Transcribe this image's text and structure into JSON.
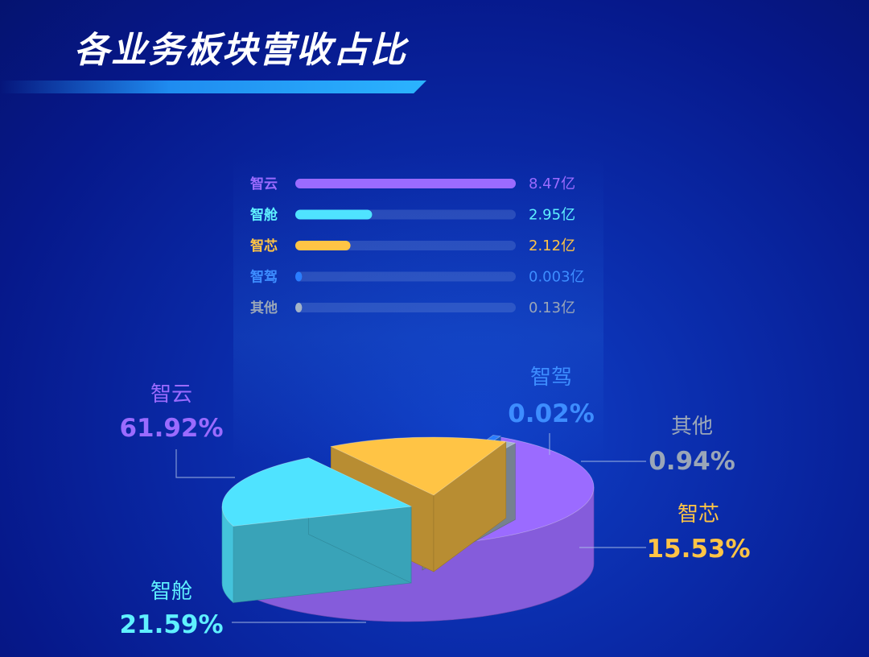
{
  "title": "各业务板块营收占比",
  "chart_data": {
    "type": "pie",
    "title": "各业务板块营收占比",
    "categories": [
      "智云",
      "智舱",
      "智芯",
      "智驾",
      "其他"
    ],
    "values_yi": [
      8.47,
      2.95,
      2.12,
      0.003,
      0.13
    ],
    "value_labels": [
      "8.47亿",
      "2.95亿",
      "2.12亿",
      "0.003亿",
      "0.13亿"
    ],
    "percent_labels": [
      "61.92%",
      "21.59%",
      "15.53%",
      "0.02%",
      "0.94%"
    ],
    "percents": [
      61.92,
      21.59,
      15.53,
      0.02,
      0.94
    ],
    "colors": [
      "#9b6bff",
      "#4fe3ff",
      "#ffc445",
      "#2a7dff",
      "#a3b3c8"
    ],
    "label_colors": [
      "#9b6bff",
      "#5ff0ff",
      "#ffc445",
      "#3d8dff",
      "#9aa6b8"
    ],
    "bar_max_yi": 8.47
  }
}
